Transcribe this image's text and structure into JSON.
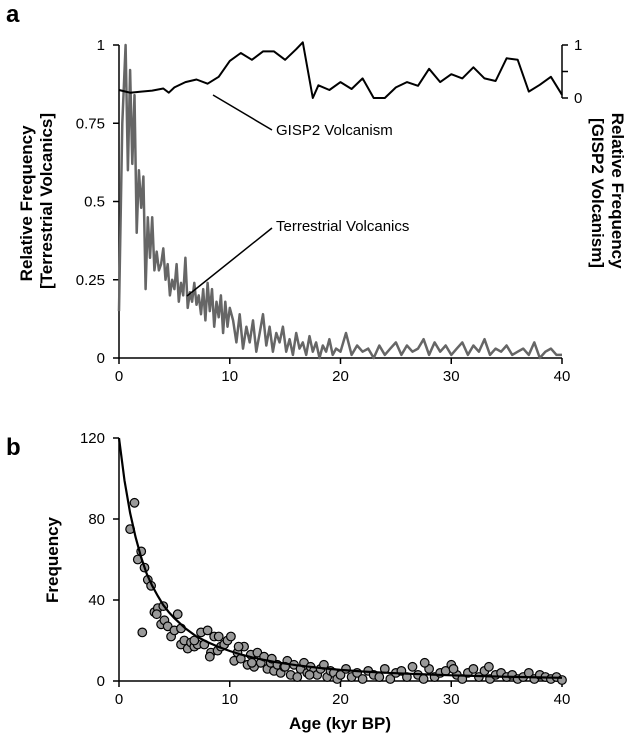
{
  "chart_data": [
    {
      "type": "line",
      "panel_label": "a",
      "x_ticks": [
        "0",
        "10",
        "20",
        "30",
        "40"
      ],
      "xlim": [
        0,
        40
      ],
      "ylabel_lines": [
        "Relative Frequency",
        "[Terrestrial Volcanics]"
      ],
      "y_ticks": [
        "0",
        "0.25",
        "0.5",
        "0.75",
        "1"
      ],
      "ylim": [
        0,
        1
      ],
      "y2label_lines": [
        "Relative Frequency",
        "[GISP2 Volcanism]"
      ],
      "y2_ticks": [
        "0",
        "1"
      ],
      "annotations": [
        "GISP2 Volcanism",
        "Terrestrial Volcanics"
      ],
      "series": [
        {
          "key": "gisp2",
          "axis": "right",
          "color": "#000000",
          "x": [
            0,
            1,
            2,
            3,
            4,
            4.5,
            5,
            6,
            7,
            8,
            9,
            10,
            11,
            12,
            13,
            14,
            15,
            16,
            16.6,
            17.5,
            18,
            19,
            20,
            21,
            22,
            23,
            24,
            25,
            26,
            27,
            28,
            29,
            30,
            31,
            32,
            33,
            34,
            35,
            36,
            37,
            38,
            39,
            40
          ],
          "y": [
            0.15,
            0.1,
            0.12,
            0.14,
            0.18,
            0.1,
            0.2,
            0.3,
            0.35,
            0.27,
            0.4,
            0.7,
            0.85,
            0.72,
            0.88,
            0.88,
            0.72,
            0.92,
            1.05,
            0.0,
            0.24,
            0.15,
            0.3,
            0.17,
            0.37,
            0.0,
            0.0,
            0.2,
            0.3,
            0.23,
            0.55,
            0.3,
            0.45,
            0.37,
            0.58,
            0.37,
            0.32,
            0.75,
            0.72,
            0.12,
            0.25,
            0.4,
            0.06
          ]
        },
        {
          "key": "terrestrial",
          "axis": "left",
          "color": "#666666",
          "x": [
            0,
            0.3,
            0.6,
            0.8,
            1,
            1.2,
            1.4,
            1.6,
            1.8,
            2,
            2.2,
            2.4,
            2.6,
            2.8,
            3,
            3.2,
            3.4,
            3.6,
            3.8,
            4,
            4.2,
            4.4,
            4.6,
            4.8,
            5,
            5.2,
            5.4,
            5.6,
            5.8,
            6,
            6.2,
            6.4,
            6.6,
            6.8,
            7,
            7.2,
            7.4,
            7.6,
            7.8,
            8,
            8.2,
            8.4,
            8.6,
            8.8,
            9,
            9.2,
            9.4,
            9.6,
            9.8,
            10,
            10.3,
            10.6,
            10.9,
            11.2,
            11.5,
            11.8,
            12.1,
            12.4,
            12.7,
            13,
            13.3,
            13.6,
            13.9,
            14.2,
            14.5,
            14.8,
            15.1,
            15.4,
            15.7,
            16,
            16.3,
            16.6,
            16.9,
            17.2,
            17.5,
            17.8,
            18.1,
            18.4,
            18.7,
            19,
            19.3,
            19.6,
            20,
            20.5,
            21,
            21.5,
            22,
            22.5,
            23,
            23.5,
            24,
            24.5,
            25,
            25.5,
            26,
            26.5,
            27,
            27.5,
            28,
            28.5,
            29,
            29.5,
            30,
            30.5,
            31,
            31.5,
            32,
            32.5,
            33,
            33.5,
            34,
            34.5,
            35,
            35.5,
            36,
            36.5,
            37,
            37.5,
            38,
            38.5,
            39,
            39.5,
            40
          ],
          "y": [
            0.15,
            0.75,
            1.0,
            0.6,
            0.92,
            0.62,
            0.84,
            0.4,
            0.6,
            0.48,
            0.58,
            0.22,
            0.45,
            0.32,
            0.45,
            0.28,
            0.34,
            0.28,
            0.3,
            0.35,
            0.25,
            0.3,
            0.2,
            0.25,
            0.22,
            0.3,
            0.18,
            0.24,
            0.2,
            0.32,
            0.16,
            0.21,
            0.18,
            0.24,
            0.17,
            0.2,
            0.14,
            0.22,
            0.12,
            0.24,
            0.15,
            0.22,
            0.1,
            0.18,
            0.13,
            0.2,
            0.08,
            0.18,
            0.1,
            0.16,
            0.12,
            0.05,
            0.14,
            0.03,
            0.1,
            0.05,
            0.12,
            0.02,
            0.08,
            0.14,
            0.04,
            0.1,
            0.02,
            0.08,
            0.05,
            0.1,
            0.02,
            0.06,
            0.01,
            0.08,
            0.03,
            0.05,
            0.01,
            0.07,
            0.02,
            0.05,
            0.0,
            0.04,
            0.02,
            0.06,
            0.01,
            0.03,
            0.02,
            0.08,
            0.01,
            0.04,
            0.02,
            0.03,
            0.0,
            0.04,
            0.01,
            0.03,
            0.05,
            0.01,
            0.04,
            0.02,
            0.03,
            0.06,
            0.01,
            0.05,
            0.02,
            0.04,
            0.01,
            0.03,
            0.05,
            0.01,
            0.04,
            0.02,
            0.06,
            0.01,
            0.03,
            0.02,
            0.04,
            0.01,
            0.02,
            0.03,
            0.01,
            0.05,
            0.0,
            0.02,
            0.03,
            0.01,
            0.01
          ]
        }
      ]
    },
    {
      "type": "scatter",
      "panel_label": "b",
      "xlabel": "Age (kyr BP)",
      "ylabel": "Frequency",
      "x_ticks": [
        "0",
        "10",
        "20",
        "30",
        "40"
      ],
      "xlim": [
        0,
        40
      ],
      "y_ticks": [
        "0",
        "40",
        "80",
        "120"
      ],
      "ylim": [
        0,
        120
      ],
      "points": {
        "color": "#999999",
        "edge": "#000000",
        "x": [
          1.0,
          1.4,
          1.7,
          2.0,
          2.3,
          2.6,
          2.9,
          3.2,
          3.5,
          3.8,
          4.1,
          4.4,
          4.7,
          5.0,
          5.3,
          5.6,
          5.9,
          6.2,
          6.5,
          6.8,
          7.1,
          7.4,
          7.7,
          8.0,
          8.3,
          8.6,
          8.9,
          9.2,
          9.5,
          9.8,
          10.1,
          10.4,
          10.7,
          11.0,
          11.3,
          11.6,
          11.9,
          12.2,
          12.5,
          12.8,
          13.1,
          13.4,
          13.7,
          14.0,
          14.3,
          14.6,
          14.9,
          15.2,
          15.5,
          15.8,
          16.1,
          16.4,
          16.7,
          17.0,
          17.3,
          17.6,
          17.9,
          18.2,
          18.5,
          18.8,
          19.1,
          19.4,
          19.7,
          20.0,
          20.5,
          21.0,
          21.5,
          22.0,
          22.5,
          23.0,
          23.5,
          24.0,
          24.5,
          25.0,
          25.5,
          26.0,
          26.5,
          27.0,
          27.5,
          28.0,
          28.5,
          29.0,
          29.5,
          30.0,
          30.5,
          31.0,
          31.5,
          32.0,
          32.5,
          33.0,
          33.5,
          34.0,
          34.5,
          35.0,
          35.5,
          36.0,
          36.5,
          37.0,
          37.5,
          38.0,
          38.5,
          39.0,
          39.5,
          40.0,
          2.1,
          3.4,
          4.0,
          5.6,
          6.8,
          8.2,
          9.0,
          10.8,
          12.0,
          13.8,
          15.0,
          17.2,
          27.6,
          30.2,
          33.4
        ],
        "y": [
          75,
          88,
          60,
          64,
          56,
          50,
          47,
          34,
          36,
          28,
          30,
          27,
          22,
          25,
          33,
          18,
          20,
          16,
          19,
          17,
          18,
          24,
          18,
          25,
          14,
          22,
          15,
          17,
          18,
          20,
          22,
          10,
          14,
          11,
          17,
          8,
          13,
          7,
          14,
          9,
          12,
          6,
          9,
          5,
          8,
          4,
          7,
          10,
          3,
          8,
          2,
          6,
          9,
          4,
          7,
          5,
          3,
          6,
          8,
          2,
          5,
          4,
          1,
          3,
          6,
          2,
          4,
          1,
          5,
          3,
          2,
          6,
          1,
          4,
          5,
          2,
          7,
          3,
          1,
          6,
          2,
          4,
          5,
          8,
          3,
          1,
          4,
          6,
          2,
          5,
          1,
          3,
          4,
          2,
          3,
          1,
          2,
          4,
          1,
          3,
          2,
          1,
          2,
          0.5,
          24,
          33,
          37,
          26,
          20,
          12,
          22,
          17,
          9,
          11,
          7,
          3,
          9,
          6,
          7
        ]
      },
      "fit": {
        "color": "#000000",
        "x": [
          0,
          0.5,
          1,
          1.5,
          2,
          2.5,
          3,
          3.5,
          4,
          4.5,
          5,
          6,
          7,
          8,
          9,
          10,
          11,
          12,
          13,
          14,
          15,
          16,
          18,
          20,
          22,
          24,
          26,
          28,
          30,
          32,
          34,
          36,
          38,
          40
        ],
        "y": [
          120,
          99,
          83,
          71,
          61,
          53,
          47,
          42,
          37.5,
          34,
          31,
          26,
          22,
          19.2,
          16.8,
          14.8,
          13.1,
          11.7,
          10.5,
          9.5,
          8.6,
          7.8,
          6.5,
          5.5,
          4.7,
          4.1,
          3.6,
          3.2,
          2.8,
          2.5,
          2.2,
          2.0,
          1.8,
          1.6
        ]
      }
    }
  ]
}
